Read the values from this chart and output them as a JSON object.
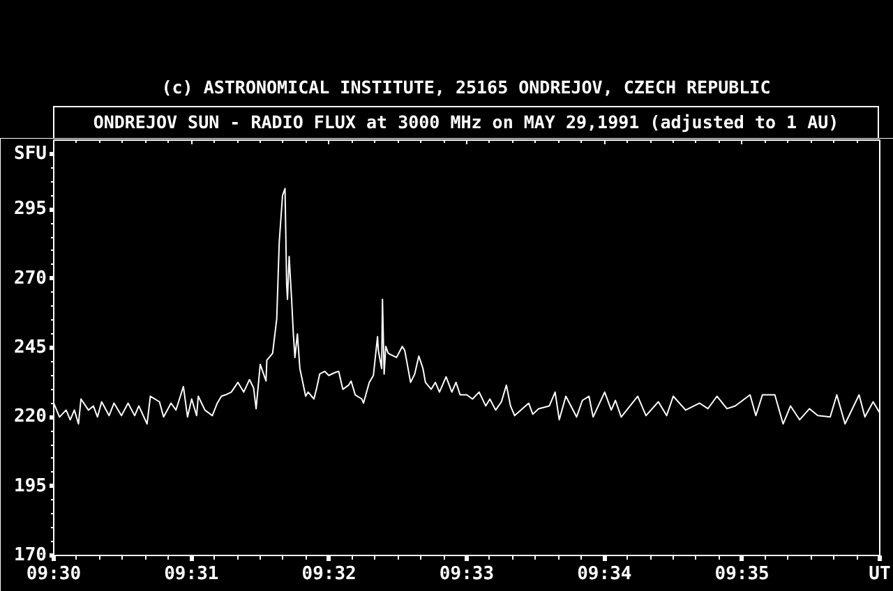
{
  "chart_data": {
    "type": "line",
    "title": "ONDREJOV SUN - RADIO FLUX at 3000 MHz on MAY 29,1991 (adjusted to 1 AU)",
    "annotations": [
      "(c) ASTRONOMICAL INSTITUTE, 25165 ONDREJOV, CZECH REPUBLIC"
    ],
    "x": [
      9.5,
      9.5007,
      9.5015,
      9.502,
      9.5025,
      9.503,
      9.5033,
      9.5042,
      9.5048,
      9.5053,
      9.5058,
      9.5067,
      9.5073,
      9.5082,
      9.509,
      9.5098,
      9.5103,
      9.5113,
      9.5117,
      9.5128,
      9.5133,
      9.5142,
      9.5148,
      9.5157,
      9.5162,
      9.5167,
      9.5173,
      9.5175,
      9.5183,
      9.5192,
      9.5198,
      9.5203,
      9.5208,
      9.5215,
      9.5223,
      9.523,
      9.5237,
      9.5242,
      9.5245,
      9.525,
      9.5257,
      9.5258,
      9.5265,
      9.527,
      9.5273,
      9.5277,
      9.528,
      9.5282,
      9.5283,
      9.5285,
      9.5288,
      9.529,
      9.5292,
      9.5295,
      9.5298,
      9.5305,
      9.5308,
      9.5315,
      9.5318,
      9.5322,
      9.5328,
      9.5333,
      9.534,
      9.5345,
      9.535,
      9.5357,
      9.536,
      9.5365,
      9.5373,
      9.5375,
      9.5382,
      9.5387,
      9.5392,
      9.5393,
      9.5397,
      9.5398,
      9.54,
      9.5402,
      9.5405,
      9.5408,
      9.5415,
      9.5422,
      9.5425,
      9.5432,
      9.5437,
      9.5442,
      9.5447,
      9.545,
      9.5457,
      9.5462,
      9.5467,
      9.5475,
      9.5482,
      9.5487,
      9.5492,
      9.55,
      9.5507,
      9.5515,
      9.5523,
      9.5528,
      9.5535,
      9.5542,
      9.5548,
      9.5553,
      9.5558,
      9.5575,
      9.558,
      9.5587,
      9.56,
      9.5607,
      9.5612,
      9.562,
      9.5633,
      9.564,
      9.5648,
      9.5653,
      9.5667,
      9.5675,
      9.568,
      9.5687,
      9.5707,
      9.5717,
      9.5732,
      9.5742,
      9.575,
      9.5765,
      9.5782,
      9.5792,
      9.5803,
      9.5815,
      9.5825,
      9.5843,
      9.585,
      9.5858,
      9.5873,
      9.5883,
      9.5892,
      9.5903,
      9.5915,
      9.5925,
      9.594,
      9.5948,
      9.5958,
      9.5975,
      9.5982,
      9.5992,
      9.6
    ],
    "series": [
      {
        "color": "#ffffff",
        "values": [
          225,
          220,
          222.5,
          219,
          222.5,
          217.5,
          226.5,
          222.5,
          224,
          220,
          225.5,
          220.5,
          225,
          220.5,
          225,
          220.5,
          224,
          217.5,
          227.5,
          225.5,
          220,
          225,
          222.5,
          231,
          220,
          226.5,
          220.5,
          227.5,
          222.5,
          220.5,
          225,
          227.5,
          228,
          229,
          232.5,
          229,
          233.5,
          230.5,
          223,
          239,
          233,
          240.5,
          243,
          255.5,
          283,
          300,
          302.5,
          268,
          262.5,
          278,
          262.5,
          250.5,
          241.5,
          250,
          237.5,
          227.5,
          229,
          226.5,
          230,
          235.5,
          236.5,
          235,
          236,
          236.5,
          230,
          231.5,
          233,
          228,
          226.5,
          225,
          232.5,
          235,
          249,
          244,
          237.5,
          262.5,
          235.5,
          245.5,
          243,
          242.5,
          241.5,
          245.5,
          244,
          232.5,
          235.5,
          242,
          237.5,
          232.5,
          230,
          232.5,
          229,
          234.5,
          229,
          232.5,
          228,
          228,
          226.5,
          229,
          224,
          226.5,
          222.5,
          225.5,
          231.5,
          224,
          220.5,
          225,
          221,
          223,
          224,
          229,
          219,
          227.5,
          220,
          226,
          227.5,
          220,
          229,
          222.5,
          226,
          220,
          227.5,
          220.5,
          225.5,
          220.5,
          227.5,
          222.5,
          225,
          223,
          227.5,
          223,
          224,
          228,
          220.5,
          228,
          228,
          217.5,
          224,
          219,
          223,
          220.5,
          220,
          228,
          217.5,
          228,
          220,
          225.5,
          221.5
        ]
      }
    ],
    "xlim": [
      9.5,
      9.6
    ],
    "ylim": [
      170,
      320
    ],
    "xticks": [
      {
        "value": 9.5,
        "label": "09:30"
      },
      {
        "value": 9.502778,
        "label": null
      },
      {
        "value": 9.505556,
        "label": null
      },
      {
        "value": 9.508333,
        "label": null
      },
      {
        "value": 9.511111,
        "label": null
      },
      {
        "value": 9.513889,
        "label": null
      },
      {
        "value": 9.516667,
        "label": "09:31"
      },
      {
        "value": 9.519444,
        "label": null
      },
      {
        "value": 9.522222,
        "label": null
      },
      {
        "value": 9.525,
        "label": null
      },
      {
        "value": 9.527778,
        "label": null
      },
      {
        "value": 9.530556,
        "label": null
      },
      {
        "value": 9.533333,
        "label": "09:32"
      },
      {
        "value": 9.536111,
        "label": null
      },
      {
        "value": 9.538889,
        "label": null
      },
      {
        "value": 9.541667,
        "label": null
      },
      {
        "value": 9.544444,
        "label": null
      },
      {
        "value": 9.547222,
        "label": null
      },
      {
        "value": 9.55,
        "label": "09:33"
      },
      {
        "value": 9.552778,
        "label": null
      },
      {
        "value": 9.555556,
        "label": null
      },
      {
        "value": 9.558333,
        "label": null
      },
      {
        "value": 9.561111,
        "label": null
      },
      {
        "value": 9.563889,
        "label": null
      },
      {
        "value": 9.566667,
        "label": "09:34"
      },
      {
        "value": 9.569444,
        "label": null
      },
      {
        "value": 9.572222,
        "label": null
      },
      {
        "value": 9.575,
        "label": null
      },
      {
        "value": 9.577778,
        "label": null
      },
      {
        "value": 9.580556,
        "label": null
      },
      {
        "value": 9.583333,
        "label": "09:35"
      },
      {
        "value": 9.586111,
        "label": null
      },
      {
        "value": 9.588889,
        "label": null
      },
      {
        "value": 9.591667,
        "label": null
      },
      {
        "value": 9.594444,
        "label": null
      },
      {
        "value": 9.597222,
        "label": null
      },
      {
        "value": 9.6,
        "label": "UT"
      }
    ],
    "yticks": [
      170,
      {
        "value": 175,
        "label": null
      },
      {
        "value": 180,
        "label": null
      },
      {
        "value": 185,
        "label": null
      },
      {
        "value": 190,
        "label": null
      },
      195,
      {
        "value": 200,
        "label": null
      },
      {
        "value": 205,
        "label": null
      },
      {
        "value": 210,
        "label": null
      },
      {
        "value": 215,
        "label": null
      },
      220,
      {
        "value": 225,
        "label": null
      },
      {
        "value": 230,
        "label": null
      },
      {
        "value": 235,
        "label": null
      },
      {
        "value": 240,
        "label": null
      },
      245,
      {
        "value": 250,
        "label": null
      },
      {
        "value": 255,
        "label": null
      },
      {
        "value": 260,
        "label": null
      },
      {
        "value": 265,
        "label": null
      },
      270,
      {
        "value": 275,
        "label": null
      },
      {
        "value": 280,
        "label": null
      },
      {
        "value": 285,
        "label": null
      },
      {
        "value": 290,
        "label": null
      },
      295,
      {
        "value": 300,
        "label": null
      },
      {
        "value": 305,
        "label": null
      },
      {
        "value": 310,
        "label": null
      },
      {
        "value": 315,
        "label": "SFU"
      }
    ]
  }
}
